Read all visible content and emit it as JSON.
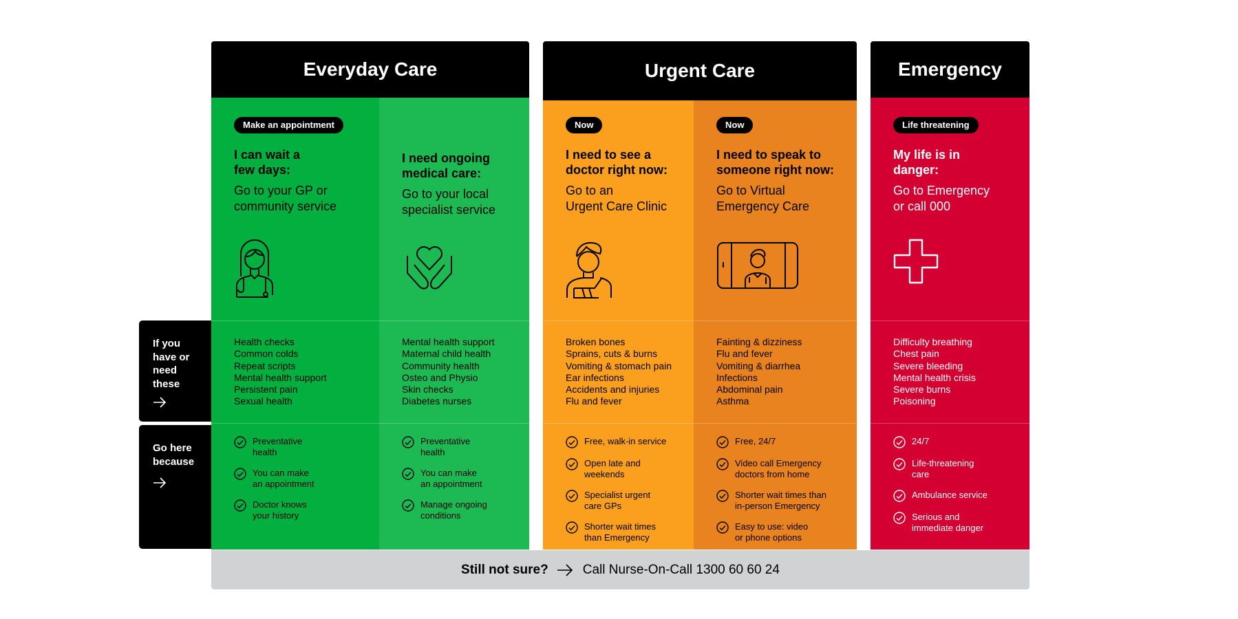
{
  "colors": {
    "everyday_1": "#03b03f",
    "everyday_2": "#1dba53",
    "urgent_1": "#fba01e",
    "urgent_2": "#e8831f",
    "emergency": "#d50032",
    "header": "#000000",
    "footer": "#d1d2d4"
  },
  "headers": [
    {
      "title": "Everyday Care"
    },
    {
      "title": "Urgent Care"
    },
    {
      "title": "Emergency"
    }
  ],
  "side_labels": {
    "have_or_need": "If you\nhave or\nneed\nthese",
    "go_here": "Go here\nbecause",
    "arrow_icon": "arrow-right-icon"
  },
  "columns": [
    {
      "badge": "Make an appointment",
      "heading": "I can wait a\nfew days:",
      "subtext": "Go to your GP or\ncommunity service",
      "icon": "doctor-woman-icon",
      "conditions": [
        "Health checks",
        "Common colds",
        "Repeat scripts",
        "Mental health support",
        "Persistent pain",
        "Sexual health"
      ],
      "reasons": [
        "Preventative\nhealth",
        "You can make\nan appointment",
        "Doctor knows\nyour history"
      ]
    },
    {
      "badge": "",
      "heading": "I need ongoing\nmedical care:",
      "subtext": "Go to your local\nspecialist service",
      "icon": "heart-hands-icon",
      "conditions": [
        "Mental health support",
        "Maternal child health",
        "Community health",
        "Osteo and Physio",
        "Skin checks",
        "Diabetes nurses"
      ],
      "reasons": [
        "Preventative\nhealth",
        "You can make\nan appointment",
        "Manage ongoing\nconditions"
      ]
    },
    {
      "badge": "Now",
      "heading": "I need to see a\ndoctor right now:",
      "subtext": "Go to an\nUrgent Care Clinic",
      "icon": "injured-person-icon",
      "conditions": [
        "Broken bones",
        "Sprains, cuts & burns",
        "Vomiting & stomach pain",
        "Ear infections",
        "Accidents and injuries",
        "Flu and fever"
      ],
      "reasons": [
        "Free, walk-in service",
        "Open late and\nweekends",
        "Specialist urgent\ncare GPs",
        "Shorter wait times\nthan Emergency"
      ]
    },
    {
      "badge": "Now",
      "heading": "I need to speak to\nsomeone right now:",
      "subtext": "Go to Virtual\nEmergency Care",
      "icon": "video-call-doctor-icon",
      "conditions": [
        "Fainting & dizziness",
        "Flu and fever",
        "Vomiting & diarrhea",
        "Infections",
        "Abdominal pain",
        "Asthma"
      ],
      "reasons": [
        "Free, 24/7",
        "Video call Emergency\ndoctors from home",
        "Shorter wait times than\nin-person Emergency",
        "Easy to use: video\nor phone options"
      ]
    },
    {
      "badge": "Life threatening",
      "heading": "My life is in\ndanger:",
      "subtext": "Go to Emergency\nor call 000",
      "icon": "medical-cross-icon",
      "conditions": [
        "Difficulty breathing",
        "Chest pain",
        "Severe bleeding",
        "Mental health crisis",
        "Severe burns",
        "Poisoning"
      ],
      "reasons": [
        "24/7",
        "Life-threatening\ncare",
        "Ambulance service",
        "Serious and\nimmediate danger"
      ]
    }
  ],
  "footer": {
    "question": "Still not sure?",
    "action": "Call Nurse-On-Call 1300 60 60 24"
  }
}
